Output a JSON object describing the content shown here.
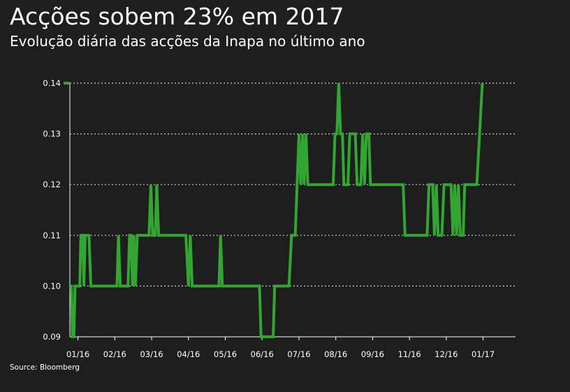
{
  "header": {
    "title": "Acções sobem 23% em 2017",
    "subtitle": "Evolução diária das acções da Inapa no último ano"
  },
  "footer": {
    "source": "Source: Bloomberg"
  },
  "colors": {
    "background": "#1e1e1e",
    "line": "#33a532",
    "grid": "#cfcfcf",
    "text": "#ffffff"
  },
  "chart_data": {
    "type": "line",
    "title": "Acções sobem 23% em 2017",
    "subtitle": "Evolução diária das acções da Inapa no último ano",
    "xlabel": "",
    "ylabel": "",
    "ylim": [
      0.09,
      0.14
    ],
    "yticks": [
      0.09,
      0.1,
      0.11,
      0.12,
      0.13,
      0.14
    ],
    "ytick_labels": [
      "0.09",
      "0.10",
      "0.11",
      "0.12",
      "0.13",
      "0.14"
    ],
    "xlim": [
      0,
      12.1
    ],
    "xticks": [
      0.22,
      1.22,
      2.22,
      3.22,
      4.22,
      5.22,
      6.22,
      7.22,
      8.22,
      9.22,
      10.22,
      11.22
    ],
    "xtick_labels": [
      "01/16",
      "02/16",
      "03/16",
      "04/16",
      "05/16",
      "06/16",
      "07/16",
      "08/16",
      "09/16",
      "11/16",
      "12/16",
      "01/17"
    ],
    "grid": "horizontal dotted",
    "series": [
      {
        "values": [
          [
            0.0,
            0.1
          ],
          [
            0.04,
            0.1
          ],
          [
            0.07,
            0.09
          ],
          [
            0.11,
            0.09
          ],
          [
            0.14,
            0.1
          ],
          [
            0.22,
            0.1
          ],
          [
            0.27,
            0.1
          ],
          [
            0.3,
            0.11
          ],
          [
            0.35,
            0.11
          ],
          [
            0.38,
            0.1
          ],
          [
            0.42,
            0.11
          ],
          [
            0.52,
            0.11
          ],
          [
            0.57,
            0.1
          ],
          [
            1.22,
            0.1
          ],
          [
            1.28,
            0.1
          ],
          [
            1.32,
            0.11
          ],
          [
            1.37,
            0.1
          ],
          [
            1.58,
            0.1
          ],
          [
            1.62,
            0.11
          ],
          [
            1.66,
            0.11
          ],
          [
            1.7,
            0.1
          ],
          [
            1.74,
            0.11
          ],
          [
            1.78,
            0.1
          ],
          [
            1.83,
            0.11
          ],
          [
            1.92,
            0.11
          ],
          [
            2.15,
            0.11
          ],
          [
            2.2,
            0.12
          ],
          [
            2.25,
            0.11
          ],
          [
            2.32,
            0.11
          ],
          [
            2.36,
            0.12
          ],
          [
            2.41,
            0.11
          ],
          [
            3.15,
            0.11
          ],
          [
            3.22,
            0.1
          ],
          [
            3.27,
            0.11
          ],
          [
            3.32,
            0.1
          ],
          [
            4.05,
            0.1
          ],
          [
            4.09,
            0.11
          ],
          [
            4.14,
            0.1
          ],
          [
            5.15,
            0.1
          ],
          [
            5.19,
            0.09
          ],
          [
            5.52,
            0.09
          ],
          [
            5.56,
            0.1
          ],
          [
            5.95,
            0.1
          ],
          [
            6.02,
            0.11
          ],
          [
            6.12,
            0.11
          ],
          [
            6.17,
            0.12
          ],
          [
            6.22,
            0.13
          ],
          [
            6.27,
            0.12
          ],
          [
            6.32,
            0.13
          ],
          [
            6.36,
            0.12
          ],
          [
            6.41,
            0.13
          ],
          [
            6.46,
            0.12
          ],
          [
            7.15,
            0.12
          ],
          [
            7.2,
            0.13
          ],
          [
            7.25,
            0.13
          ],
          [
            7.3,
            0.14
          ],
          [
            7.35,
            0.13
          ],
          [
            7.4,
            0.13
          ],
          [
            7.44,
            0.12
          ],
          [
            7.55,
            0.12
          ],
          [
            7.6,
            0.13
          ],
          [
            7.75,
            0.13
          ],
          [
            7.8,
            0.12
          ],
          [
            7.9,
            0.12
          ],
          [
            7.95,
            0.13
          ],
          [
            8.0,
            0.12
          ],
          [
            8.05,
            0.13
          ],
          [
            8.12,
            0.13
          ],
          [
            8.16,
            0.12
          ],
          [
            9.05,
            0.12
          ],
          [
            9.1,
            0.11
          ],
          [
            9.7,
            0.11
          ],
          [
            9.75,
            0.12
          ],
          [
            9.85,
            0.12
          ],
          [
            9.9,
            0.11
          ],
          [
            9.95,
            0.12
          ],
          [
            10.0,
            0.11
          ],
          [
            10.1,
            0.11
          ],
          [
            10.16,
            0.12
          ],
          [
            10.35,
            0.12
          ],
          [
            10.4,
            0.11
          ],
          [
            10.45,
            0.12
          ],
          [
            10.5,
            0.11
          ],
          [
            10.55,
            0.12
          ],
          [
            10.6,
            0.11
          ],
          [
            10.68,
            0.11
          ],
          [
            10.72,
            0.12
          ],
          [
            11.05,
            0.12
          ],
          [
            11.2,
            0.14
          ]
        ]
      }
    ]
  }
}
